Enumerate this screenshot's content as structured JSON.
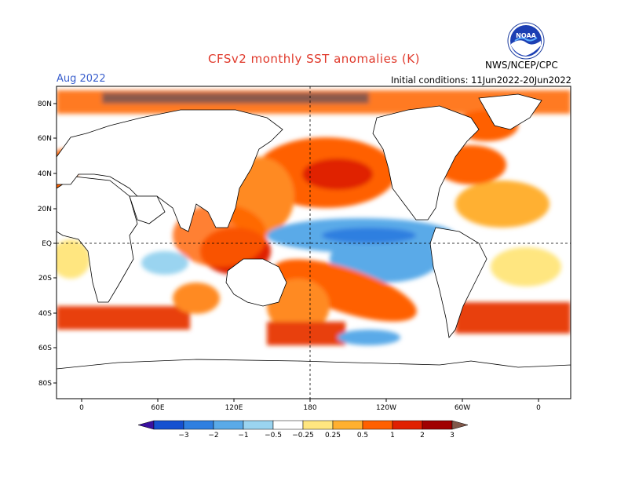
{
  "header": {
    "title": "CFSv2 monthly SST anomalies (K)",
    "month": "Aug 2022",
    "initial_conditions": "Initial conditions: 11Jun2022-20Jun2022",
    "organization": "NWS/NCEP/CPC",
    "logo_text": "NOAA"
  },
  "axes": {
    "lat_labels": [
      "80N",
      "60N",
      "40N",
      "20N",
      "EQ",
      "20S",
      "40S",
      "60S",
      "80S"
    ],
    "lon_labels": [
      "0",
      "60E",
      "120E",
      "180",
      "120W",
      "60W",
      "0"
    ]
  },
  "colorbar": {
    "labels": [
      "-3",
      "-2",
      "-1",
      "-0.5",
      "-0.25",
      "0.25",
      "0.5",
      "1",
      "2",
      "3"
    ],
    "colors": [
      "#3a10a0",
      "#1550d0",
      "#2f7fe0",
      "#5aaae8",
      "#9ad4f0",
      "#ffffff",
      "#ffe680",
      "#ffb030",
      "#ff6000",
      "#e02000",
      "#a00000",
      "#80584a"
    ]
  },
  "colors": {
    "title": "#e0392b",
    "month": "#3a5fcd",
    "land": "#ffffff"
  }
}
